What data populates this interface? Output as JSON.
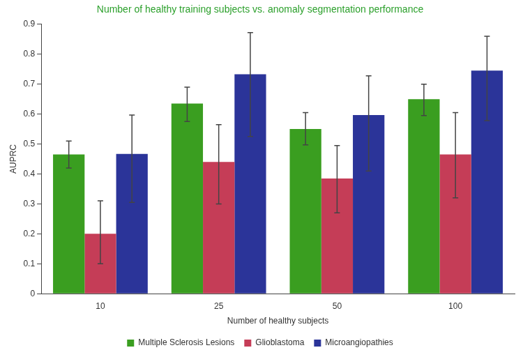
{
  "chart_data": {
    "type": "bar",
    "title": "Number of healthy training subjects vs. anomaly segmentation performance",
    "x_label": "Number of healthy subjects",
    "y_label": "AUPRC",
    "categories": [
      "10",
      "25",
      "50",
      "100"
    ],
    "series": [
      {
        "name": "Multiple Sclerosis Lesions",
        "color": "#3a9e20",
        "values": [
          0.465,
          0.635,
          0.55,
          0.65
        ],
        "error_low": [
          0.42,
          0.575,
          0.497,
          0.595
        ],
        "error_high": [
          0.51,
          0.69,
          0.605,
          0.7
        ]
      },
      {
        "name": "Glioblastoma",
        "color": "#c53d57",
        "values": [
          0.2,
          0.44,
          0.385,
          0.465
        ],
        "error_low": [
          0.1,
          0.3,
          0.27,
          0.32
        ],
        "error_high": [
          0.31,
          0.565,
          0.495,
          0.605
        ]
      },
      {
        "name": "Microangiopathies",
        "color": "#2b3499",
        "values": [
          0.467,
          0.733,
          0.597,
          0.745
        ],
        "error_low": [
          0.305,
          0.525,
          0.41,
          0.578
        ],
        "error_high": [
          0.597,
          0.872,
          0.728,
          0.86
        ]
      }
    ],
    "ylim": [
      0,
      0.9
    ],
    "yticks": [
      0,
      0.1,
      0.2,
      0.3,
      0.4,
      0.5,
      0.6,
      0.7,
      0.8,
      0.9
    ],
    "grid": false,
    "legend": "bottom"
  }
}
